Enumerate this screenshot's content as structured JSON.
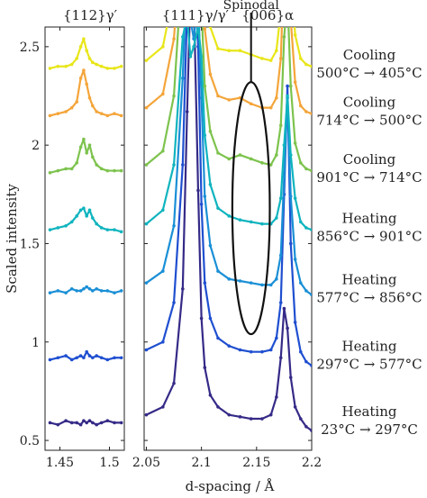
{
  "chart_data": {
    "type": "line",
    "ylabel": "Scaled intensity",
    "xlabel": "d-spacing / Å",
    "ylim": [
      0.45,
      2.6
    ],
    "yticks": [
      "0.5",
      "1",
      "1.5",
      "2",
      "2.5"
    ],
    "ytick_values": [
      0.5,
      1.0,
      1.5,
      2.0,
      2.5
    ],
    "panels": [
      {
        "title": "{112}γ′",
        "xlim": [
          1.435,
          1.515
        ],
        "xticks": [
          "1.45",
          "1.5"
        ],
        "xtick_values": [
          1.45,
          1.5
        ],
        "x": [
          1.44,
          1.448,
          1.456,
          1.462,
          1.467,
          1.471,
          1.474,
          1.477,
          1.48,
          1.483,
          1.487,
          1.492,
          1.498,
          1.505,
          1.512
        ]
      },
      {
        "title": "{111}γ/γ′   {006}α",
        "xlim": [
          2.048,
          2.2
        ],
        "xticks": [
          "2.05",
          "2.1",
          "2.15",
          "2.2"
        ],
        "xtick_values": [
          2.05,
          2.1,
          2.15,
          2.2
        ],
        "x": [
          2.05,
          2.065,
          2.075,
          2.083,
          2.087,
          2.09,
          2.093,
          2.097,
          2.1,
          2.103,
          2.108,
          2.115,
          2.125,
          2.135,
          2.145,
          2.155,
          2.163,
          2.168,
          2.172,
          2.175,
          2.178,
          2.181,
          2.185,
          2.19,
          2.195,
          2.2
        ]
      }
    ],
    "series": [
      {
        "name": "Heating 23°C → 297°C",
        "color": "#352a87",
        "offset": 0.57,
        "left": [
          0.02,
          0.01,
          0.03,
          0.02,
          0.02,
          0.01,
          0.03,
          0.02,
          0.03,
          0.02,
          0.01,
          0.02,
          0.03,
          0.02,
          0.02
        ],
        "right": [
          0.06,
          0.1,
          0.22,
          0.7,
          1.6,
          2.2,
          2.2,
          1.2,
          0.55,
          0.3,
          0.16,
          0.1,
          0.06,
          0.05,
          0.04,
          0.04,
          0.06,
          0.15,
          0.35,
          0.6,
          0.5,
          0.25,
          0.1,
          0.04,
          0.0,
          -0.02
        ]
      },
      {
        "name": "Heating 297°C → 577°C",
        "color": "#1f4fd0",
        "offset": 0.9,
        "left": [
          0.01,
          0.02,
          0.03,
          0.01,
          0.02,
          0.03,
          0.02,
          0.05,
          0.03,
          0.02,
          0.03,
          0.02,
          0.01,
          0.02,
          0.02
        ],
        "right": [
          0.06,
          0.1,
          0.3,
          1.0,
          1.8,
          2.2,
          2.2,
          1.6,
          0.8,
          0.4,
          0.22,
          0.12,
          0.08,
          0.06,
          0.05,
          0.05,
          0.06,
          0.12,
          0.3,
          0.85,
          1.4,
          0.6,
          0.2,
          0.05,
          0.0,
          -0.02
        ]
      },
      {
        "name": "Heating 577°C → 856°C",
        "color": "#1a8fd6",
        "offset": 1.24,
        "left": [
          0.01,
          0.02,
          0.01,
          0.03,
          0.02,
          0.02,
          0.03,
          0.04,
          0.03,
          0.02,
          0.03,
          0.02,
          0.02,
          0.01,
          0.02
        ],
        "right": [
          0.06,
          0.12,
          0.35,
          1.1,
          1.7,
          1.4,
          1.3,
          1.5,
          1.0,
          0.5,
          0.25,
          0.12,
          0.08,
          0.07,
          0.06,
          0.05,
          0.05,
          0.08,
          0.2,
          0.6,
          1.0,
          0.5,
          0.18,
          0.06,
          0.02,
          0.0
        ]
      },
      {
        "name": "Heating 856°C → 901°C",
        "color": "#0fb4be",
        "offset": 1.55,
        "left": [
          0.02,
          0.03,
          0.04,
          0.06,
          0.09,
          0.12,
          0.13,
          0.09,
          0.12,
          0.08,
          0.05,
          0.03,
          0.02,
          0.02,
          0.01
        ],
        "right": [
          0.05,
          0.12,
          0.35,
          1.0,
          1.1,
          0.9,
          0.95,
          1.05,
          0.9,
          0.5,
          0.25,
          0.13,
          0.09,
          0.07,
          0.06,
          0.05,
          0.05,
          0.08,
          0.18,
          0.45,
          0.7,
          0.4,
          0.18,
          0.06,
          0.03,
          0.02
        ]
      },
      {
        "name": "Cooling 901°C → 714°C",
        "color": "#7dc34e",
        "offset": 1.85,
        "left": [
          0.01,
          0.02,
          0.03,
          0.03,
          0.06,
          0.14,
          0.18,
          0.11,
          0.15,
          0.09,
          0.05,
          0.03,
          0.02,
          0.02,
          0.02
        ],
        "right": [
          0.05,
          0.12,
          0.4,
          1.1,
          1.0,
          0.9,
          0.95,
          1.1,
          0.85,
          0.45,
          0.22,
          0.11,
          0.08,
          0.1,
          0.08,
          0.06,
          0.05,
          0.1,
          0.25,
          0.7,
          0.9,
          0.45,
          0.16,
          0.06,
          0.03,
          0.02
        ]
      },
      {
        "name": "Cooling 714°C → 500°C",
        "color": "#f4a53a",
        "offset": 2.14,
        "left": [
          0.01,
          0.02,
          0.03,
          0.05,
          0.08,
          0.2,
          0.24,
          0.17,
          0.1,
          0.06,
          0.03,
          0.02,
          0.01,
          0.02,
          0.01
        ],
        "right": [
          0.05,
          0.12,
          0.4,
          1.0,
          0.9,
          0.8,
          0.85,
          1.0,
          0.8,
          0.45,
          0.22,
          0.11,
          0.09,
          0.1,
          0.07,
          0.05,
          0.05,
          0.1,
          0.3,
          0.8,
          1.0,
          0.5,
          0.18,
          0.06,
          0.03,
          0.02
        ]
      },
      {
        "name": "Cooling 500°C → 405°C",
        "color": "#e8e619",
        "offset": 2.38,
        "left": [
          0.01,
          0.02,
          0.02,
          0.03,
          0.06,
          0.12,
          0.16,
          0.1,
          0.06,
          0.04,
          0.03,
          0.02,
          0.01,
          0.01,
          0.02
        ],
        "right": [
          0.05,
          0.12,
          0.4,
          1.0,
          0.9,
          0.8,
          0.85,
          1.0,
          0.8,
          0.45,
          0.22,
          0.11,
          0.1,
          0.1,
          0.08,
          0.06,
          0.05,
          0.1,
          0.3,
          0.8,
          1.0,
          0.5,
          0.18,
          0.06,
          0.03,
          0.02
        ]
      }
    ],
    "legend_labels": [
      {
        "line1": "Cooling",
        "line2": "500°C → 405°C"
      },
      {
        "line1": "Cooling",
        "line2": "714°C → 500°C"
      },
      {
        "line1": "Cooling",
        "line2": "901°C → 714°C"
      },
      {
        "line1": "Heating",
        "line2": "856°C → 901°C"
      },
      {
        "line1": "Heating",
        "line2": "577°C → 856°C"
      },
      {
        "line1": "Heating",
        "line2": "297°C → 577°C"
      },
      {
        "line1": "Heating",
        "line2": "23°C → 297°C"
      }
    ],
    "annotation": {
      "text": "Spinodal",
      "ellipse_center_x": 2.145,
      "ellipse_center_y": 1.68,
      "ellipse_half_width_x": 0.017,
      "ellipse_half_height_y": 0.64
    },
    "grid": false,
    "legend_placement": "right"
  }
}
